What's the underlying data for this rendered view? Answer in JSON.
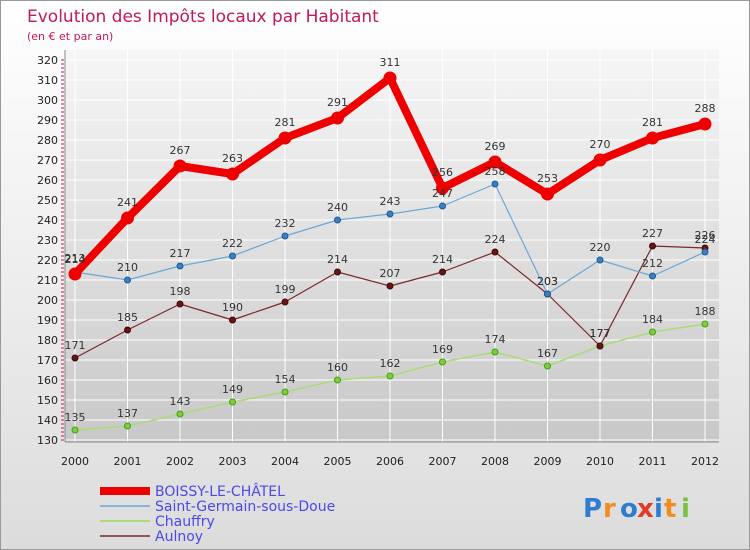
{
  "chart_data": {
    "type": "line",
    "title": "Evolution des Impôts locaux par Habitant",
    "subtitle": "(en € et par an)",
    "x": [
      "2000",
      "2001",
      "2002",
      "2003",
      "2004",
      "2005",
      "2006",
      "2007",
      "2008",
      "2009",
      "2010",
      "2011",
      "2012"
    ],
    "ylim": [
      130,
      320
    ],
    "yticks": [
      130,
      140,
      150,
      160,
      170,
      180,
      190,
      200,
      210,
      220,
      230,
      240,
      250,
      260,
      270,
      280,
      290,
      300,
      310,
      320
    ],
    "series": [
      {
        "name": "BOISSY-LE-CHÂTEL",
        "color": "#ee0000",
        "values": [
          213,
          241,
          267,
          263,
          281,
          291,
          311,
          256,
          269,
          253,
          270,
          281,
          288
        ],
        "labels": [
          "213",
          "241",
          "267",
          "263",
          "281",
          "291",
          "311",
          "256",
          "269",
          "253",
          "270",
          "281",
          "288"
        ]
      },
      {
        "name": "Saint-Germain-sous-Doue",
        "color": "#6aa8d6",
        "values": [
          214,
          210,
          217,
          222,
          232,
          240,
          243,
          247,
          258,
          203,
          220,
          212,
          224
        ],
        "labels": [
          "214",
          "210",
          "217",
          "222",
          "232",
          "240",
          "243",
          "247",
          "258",
          "203",
          "220",
          "212",
          "224"
        ]
      },
      {
        "name": "Chauffry",
        "color": "#a8dc78",
        "values": [
          135,
          137,
          143,
          149,
          154,
          160,
          162,
          169,
          174,
          167,
          177,
          184,
          188
        ],
        "labels": [
          "135",
          "137",
          "143",
          "149",
          "154",
          "160",
          "162",
          "169",
          "174",
          "167",
          "177",
          "184",
          "188"
        ]
      },
      {
        "name": "Aulnoy",
        "color": "#7a2a2a",
        "values": [
          171,
          185,
          198,
          190,
          199,
          214,
          207,
          214,
          224,
          203,
          177,
          227,
          226
        ],
        "labels": [
          "171",
          "185",
          "198",
          "190",
          "199",
          "214",
          "207",
          "214",
          "224",
          "203",
          "177",
          "227",
          "226"
        ]
      }
    ],
    "legend": [
      "BOISSY-LE-CHÂTEL",
      "Saint-Germain-sous-Doue",
      "Chauffry",
      "Aulnoy"
    ]
  },
  "brand": {
    "letters": [
      "P",
      "r",
      "o",
      "x",
      "i",
      "t",
      "i"
    ]
  }
}
